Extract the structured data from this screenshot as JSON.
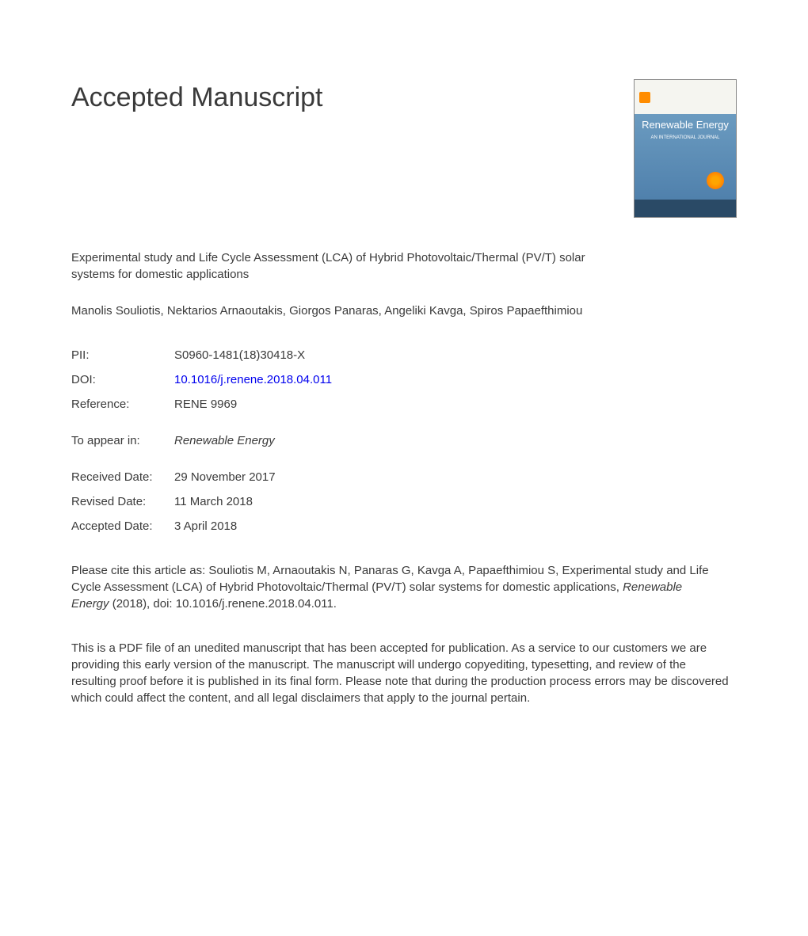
{
  "header": {
    "title": "Accepted Manuscript"
  },
  "cover": {
    "journal_name": "Renewable Energy",
    "subtitle": "AN INTERNATIONAL JOURNAL"
  },
  "article": {
    "title": "Experimental study and Life Cycle Assessment (LCA) of Hybrid Photovoltaic/Thermal (PV/T) solar systems for domestic applications",
    "authors": "Manolis Souliotis, Nektarios Arnaoutakis, Giorgos Panaras, Angeliki Kavga, Spiros Papaefthimiou"
  },
  "metadata": {
    "pii_label": "PII:",
    "pii_value": "S0960-1481(18)30418-X",
    "doi_label": "DOI:",
    "doi_value": "10.1016/j.renene.2018.04.011",
    "reference_label": "Reference:",
    "reference_value": "RENE 9969",
    "to_appear_label": "To appear in:",
    "to_appear_value": "Renewable Energy",
    "received_label": "Received Date:",
    "received_value": "29 November 2017",
    "revised_label": "Revised Date:",
    "revised_value": "11 March 2018",
    "accepted_label": "Accepted Date:",
    "accepted_value": "3 April 2018"
  },
  "citation": {
    "prefix": "Please cite this article as: Souliotis M, Arnaoutakis N, Panaras G, Kavga A, Papaefthimiou S, Experimental study and Life Cycle Assessment (LCA) of Hybrid Photovoltaic/Thermal (PV/T) solar systems for domestic applications, ",
    "journal": "Renewable Energy",
    "suffix": " (2018), doi: 10.1016/j.renene.2018.04.011."
  },
  "disclaimer": {
    "text": "This is a PDF file of an unedited manuscript that has been accepted for publication. As a service to our customers we are providing this early version of the manuscript. The manuscript will undergo copyediting, typesetting, and review of the resulting proof before it is published in its final form. Please note that during the production process errors may be discovered which could affect the content, and all legal disclaimers that apply to the journal pertain."
  }
}
